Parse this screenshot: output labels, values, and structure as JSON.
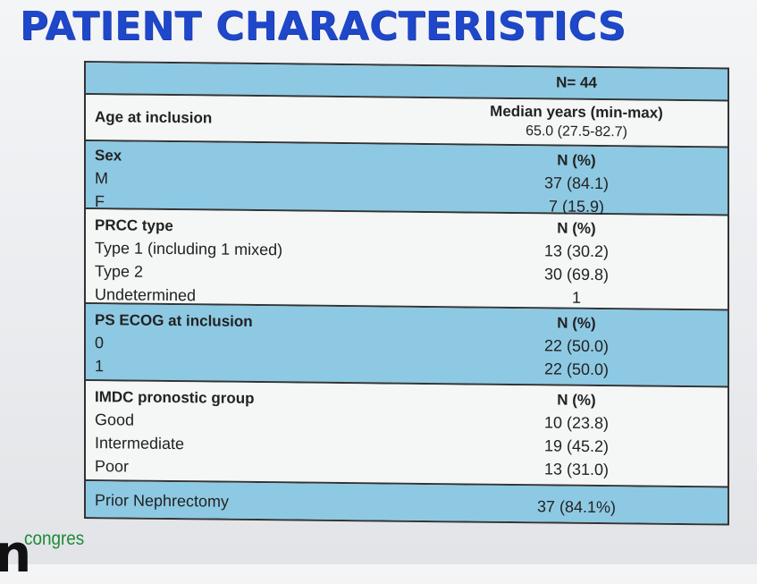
{
  "title": "PATIENT CHARACTERISTICS",
  "header": {
    "n_label": "N= 44"
  },
  "age": {
    "label": "Age at inclusion",
    "stat_header": "Median years (min-max)",
    "value": "65.0  (27.5-82.7)"
  },
  "sex": {
    "label": "Sex",
    "stat_header": "N (%)",
    "items": [
      {
        "label": "M",
        "value": "37 (84.1)"
      },
      {
        "label": "F",
        "value": "7  (15.9)"
      }
    ]
  },
  "prcc": {
    "label": "PRCC type",
    "stat_header": "N (%)",
    "items": [
      {
        "label": "Type 1 (including 1 mixed)",
        "value": "13 (30.2)"
      },
      {
        "label": "Type 2",
        "value": "30 (69.8)"
      },
      {
        "label": "Undetermined",
        "value": "1"
      }
    ]
  },
  "ecog": {
    "label": "PS ECOG at inclusion",
    "stat_header": "N (%)",
    "items": [
      {
        "label": "0",
        "value": "22 (50.0)"
      },
      {
        "label": "1",
        "value": "22 (50.0)"
      }
    ]
  },
  "imdc": {
    "label": "IMDC pronostic group",
    "stat_header": "N (%)",
    "items": [
      {
        "label": "Good",
        "value": "10 (23.8)"
      },
      {
        "label": "Intermediate",
        "value": "19 (45.2)"
      },
      {
        "label": "Poor",
        "value": "13 (31.0)"
      }
    ]
  },
  "nephrectomy": {
    "label": "Prior Nephrectomy",
    "value": "37 (84.1%)"
  },
  "logo": {
    "text": "congres"
  }
}
